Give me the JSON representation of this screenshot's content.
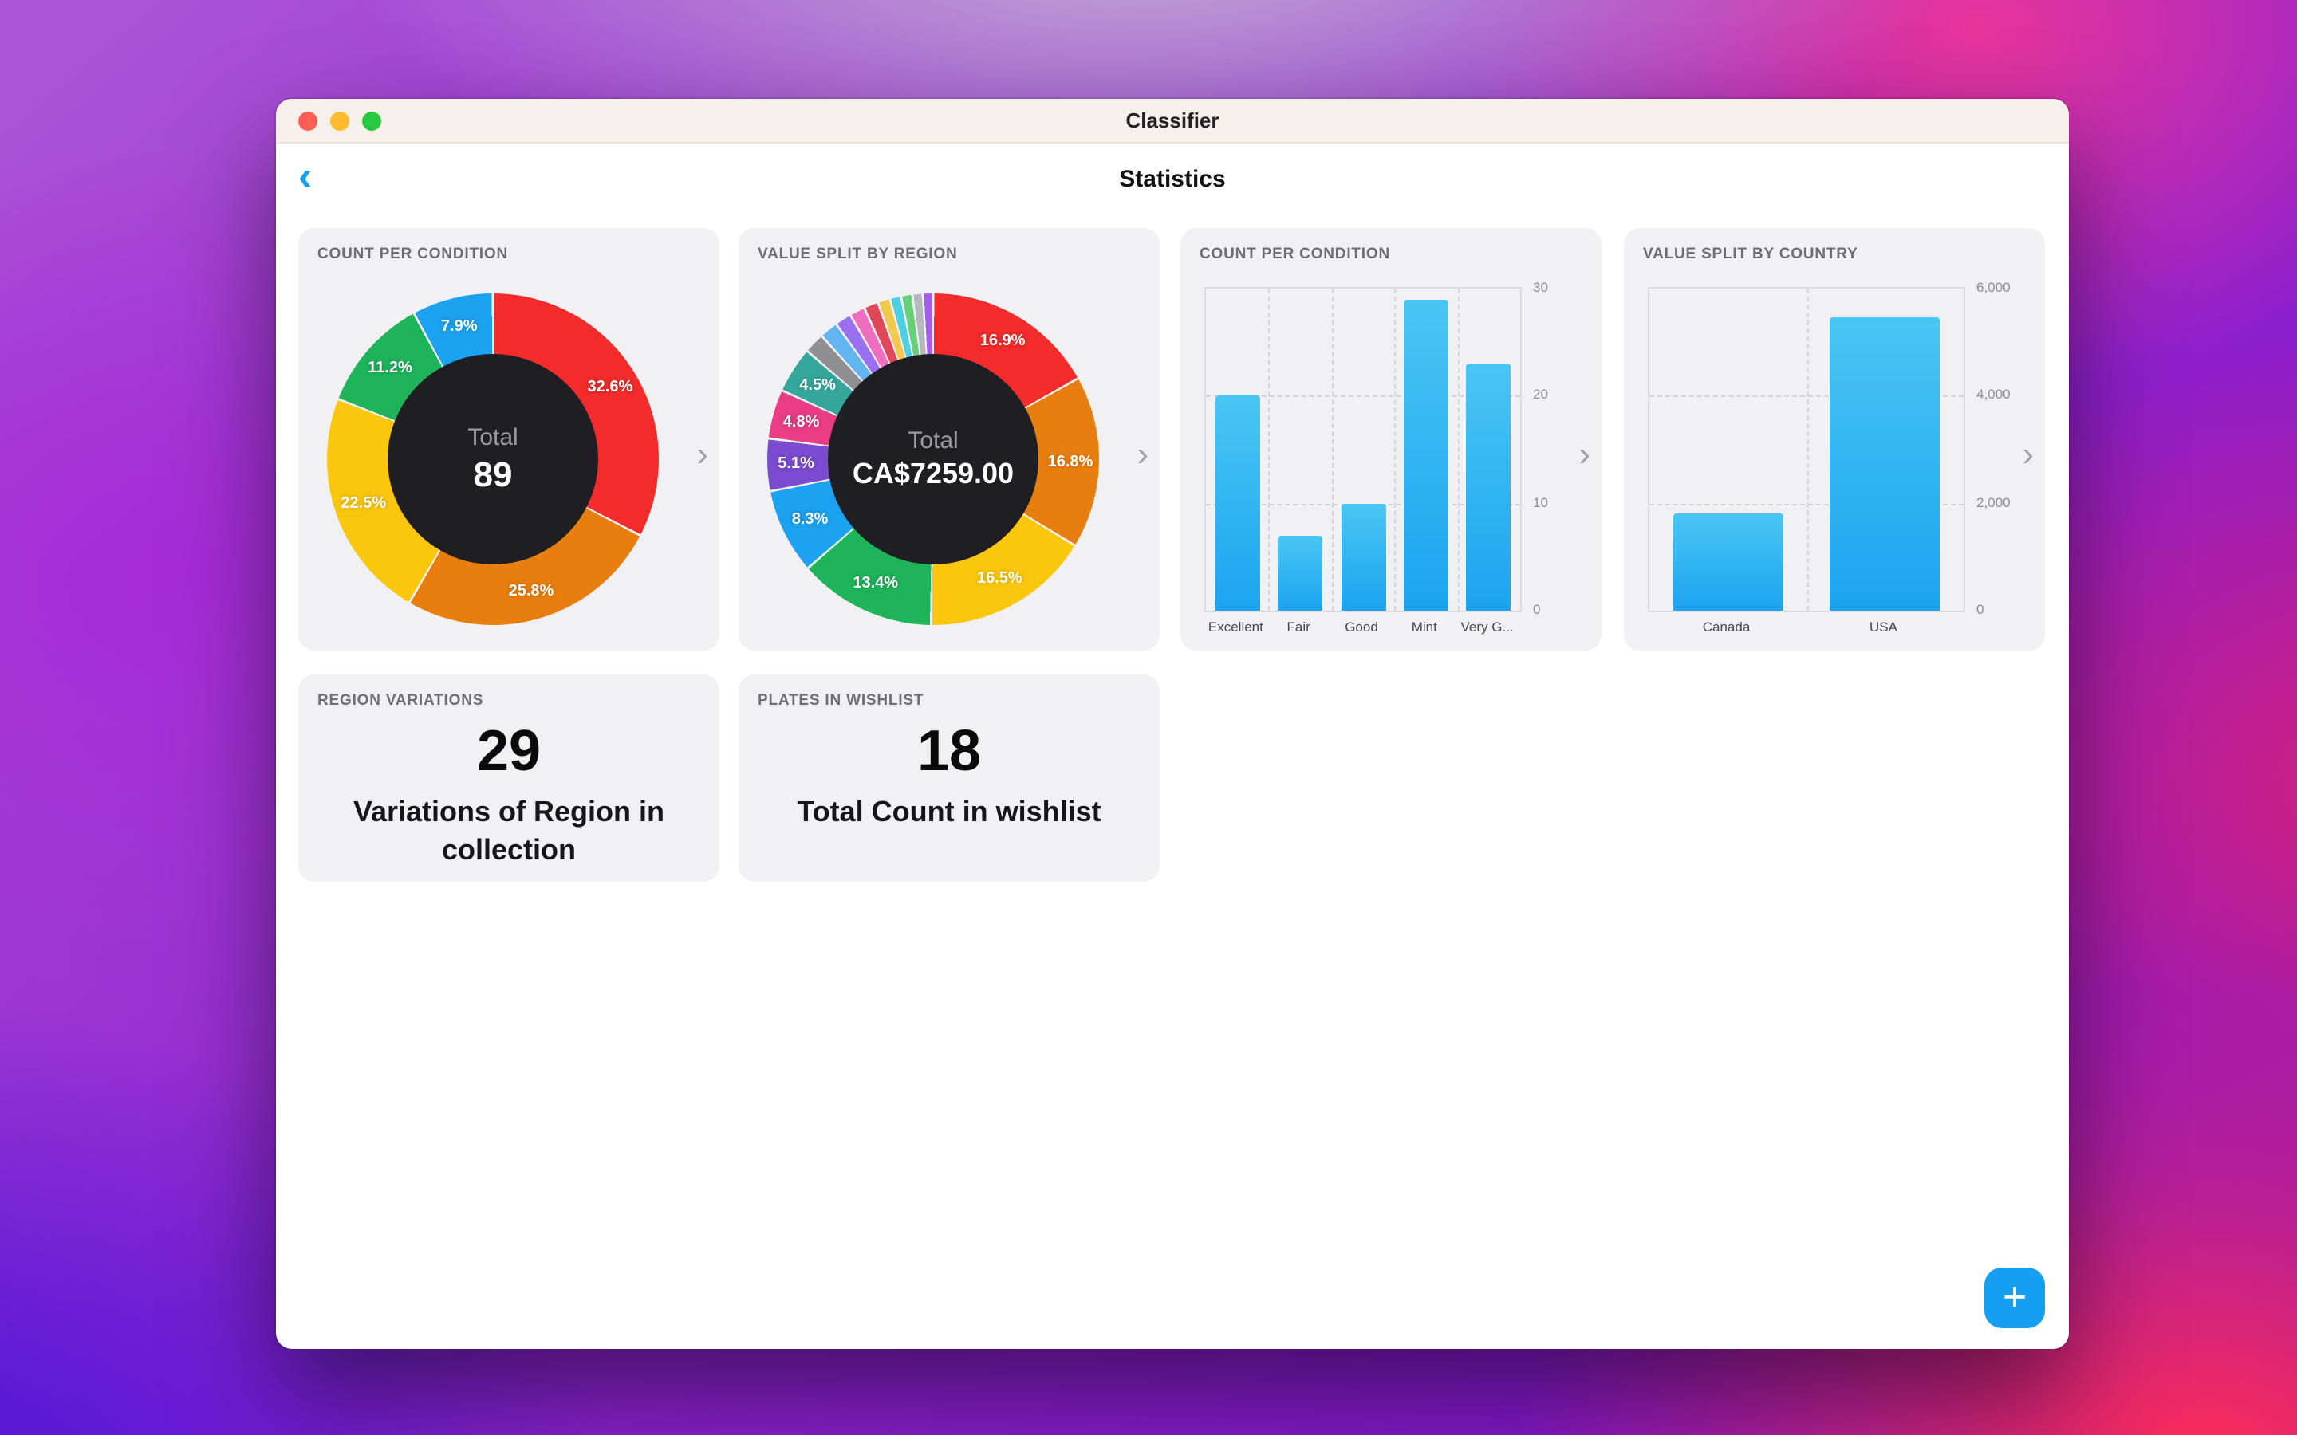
{
  "window": {
    "title": "Classifier"
  },
  "nav": {
    "title": "Statistics"
  },
  "icons": {
    "back": "‹",
    "chevron_right": "›",
    "plus": "+"
  },
  "colors": {
    "accent": "#149ff3",
    "card_background": "#f1f1f3",
    "donut_center": "#1f1f23"
  },
  "chart_data": [
    {
      "type": "pie",
      "title": "COUNT PER CONDITION",
      "center_label": "Total",
      "center_value": "89",
      "slices": [
        {
          "label": "32.6%",
          "value": 32.6,
          "color": "#f32b2b"
        },
        {
          "label": "25.8%",
          "value": 25.8,
          "color": "#e87e0e"
        },
        {
          "label": "22.5%",
          "value": 22.5,
          "color": "#fbc70d"
        },
        {
          "label": "11.2%",
          "value": 11.2,
          "color": "#1eb45a"
        },
        {
          "label": "7.9%",
          "value": 7.9,
          "color": "#1ba2f0"
        }
      ]
    },
    {
      "type": "pie",
      "title": "VALUE SPLIT BY REGION",
      "center_label": "Total",
      "center_value": "CA$7259.00",
      "slices": [
        {
          "label": "16.9%",
          "value": 16.9,
          "color": "#f32b2b"
        },
        {
          "label": "16.8%",
          "value": 16.8,
          "color": "#e87e0e"
        },
        {
          "label": "16.5%",
          "value": 16.5,
          "color": "#fbc70d"
        },
        {
          "label": "13.4%",
          "value": 13.4,
          "color": "#1eb45a"
        },
        {
          "label": "8.3%",
          "value": 8.3,
          "color": "#1ba2f0"
        },
        {
          "label": "5.1%",
          "value": 5.1,
          "color": "#7b4bd0"
        },
        {
          "label": "4.8%",
          "value": 4.8,
          "color": "#e93d85"
        },
        {
          "label": "4.5%",
          "value": 4.5,
          "color": "#35a79d"
        },
        {
          "label": "",
          "value": 2.0,
          "color": "#8e8e93"
        },
        {
          "label": "",
          "value": 1.8,
          "color": "#63b5f0"
        },
        {
          "label": "",
          "value": 1.6,
          "color": "#9a6ff0"
        },
        {
          "label": "",
          "value": 1.5,
          "color": "#f06ec0"
        },
        {
          "label": "",
          "value": 1.4,
          "color": "#e0485a"
        },
        {
          "label": "",
          "value": 1.2,
          "color": "#f2c94c"
        },
        {
          "label": "",
          "value": 1.1,
          "color": "#4dd0e1"
        },
        {
          "label": "",
          "value": 1.1,
          "color": "#66d17a"
        },
        {
          "label": "",
          "value": 1.0,
          "color": "#b5b8bd"
        },
        {
          "label": "",
          "value": 1.0,
          "color": "#a55eea"
        }
      ]
    },
    {
      "type": "bar",
      "title": "COUNT PER CONDITION",
      "categories": [
        "Excellent",
        "Fair",
        "Good",
        "Mint",
        "Very G..."
      ],
      "values": [
        20,
        7,
        10,
        29,
        23
      ],
      "ylim": [
        0,
        30
      ],
      "yticks": [
        "0",
        "10",
        "20",
        "30"
      ],
      "bar_gradient": [
        "#49c6f3",
        "#1ba4ef"
      ]
    },
    {
      "type": "bar",
      "title": "VALUE SPLIT BY COUNTRY",
      "categories": [
        "Canada",
        "USA"
      ],
      "values": [
        1800,
        5459
      ],
      "ylim": [
        0,
        6000
      ],
      "yticks": [
        "0",
        "2,000",
        "4,000",
        "6,000"
      ],
      "bar_gradient": [
        "#49c6f3",
        "#1ba4ef"
      ]
    }
  ],
  "stat_cards": [
    {
      "title": "REGION VARIATIONS",
      "value": "29",
      "caption": "Variations of Region in collection"
    },
    {
      "title": "PLATES IN WISHLIST",
      "value": "18",
      "caption": "Total Count in wishlist"
    }
  ]
}
